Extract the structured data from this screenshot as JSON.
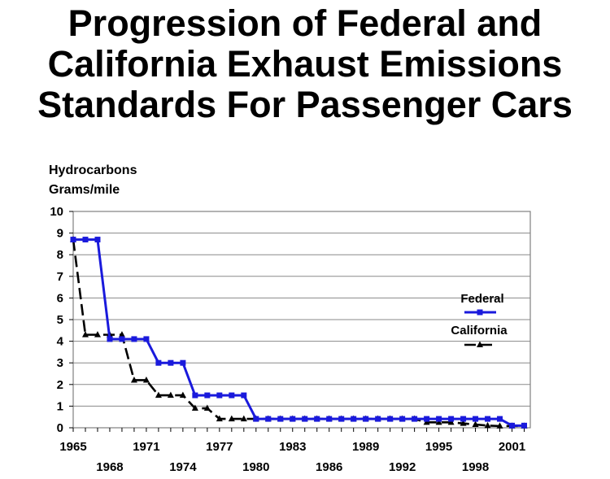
{
  "title": {
    "line1": "Progression of Federal and",
    "line2": "California Exhaust Emissions",
    "line3": "Standards For Passenger Cars"
  },
  "ylabel": {
    "line1": "Hydrocarbons",
    "line2": "Grams/mile"
  },
  "chart_data": {
    "type": "line",
    "title": "Progression of Federal and California Exhaust Emissions Standards For Passenger Cars",
    "xlabel": "",
    "ylabel": "Hydrocarbons Grams/mile",
    "xlim": [
      1965,
      2002.5
    ],
    "ylim": [
      0,
      10
    ],
    "y_ticks": [
      0,
      1,
      2,
      3,
      4,
      5,
      6,
      7,
      8,
      9,
      10
    ],
    "x_tick_labels_upper": [
      "1965",
      "1971",
      "1977",
      "1983",
      "1989",
      "1995",
      "2001"
    ],
    "x_tick_labels_lower": [
      "1968",
      "1974",
      "1980",
      "1986",
      "1992",
      "1998"
    ],
    "grid": "horizontal",
    "legend_position": "right",
    "x": [
      1965,
      1966,
      1967,
      1968,
      1969,
      1970,
      1971,
      1972,
      1973,
      1974,
      1975,
      1976,
      1977,
      1978,
      1979,
      1980,
      1981,
      1982,
      1983,
      1984,
      1985,
      1986,
      1987,
      1988,
      1989,
      1990,
      1991,
      1992,
      1993,
      1994,
      1995,
      1996,
      1997,
      1998,
      1999,
      2000,
      2001,
      2002
    ],
    "series": [
      {
        "name": "Federal",
        "color": "#1a1adc",
        "marker": "square",
        "dash": "solid",
        "values": [
          8.7,
          8.7,
          8.7,
          4.1,
          4.1,
          4.1,
          4.1,
          3.0,
          3.0,
          3.0,
          1.5,
          1.5,
          1.5,
          1.5,
          1.5,
          0.41,
          0.41,
          0.41,
          0.41,
          0.41,
          0.41,
          0.41,
          0.41,
          0.41,
          0.41,
          0.41,
          0.41,
          0.41,
          0.41,
          0.41,
          0.41,
          0.41,
          0.41,
          0.41,
          0.41,
          0.41,
          0.1,
          0.1
        ]
      },
      {
        "name": "California",
        "color": "#000000",
        "marker": "triangle",
        "dash": "dashed",
        "values": [
          8.7,
          4.3,
          4.3,
          4.3,
          4.3,
          2.2,
          2.2,
          1.5,
          1.5,
          1.5,
          0.9,
          0.9,
          0.41,
          0.41,
          0.41,
          0.41,
          0.41,
          0.41,
          0.41,
          0.41,
          0.41,
          0.41,
          0.41,
          0.41,
          0.41,
          0.41,
          0.41,
          0.41,
          0.41,
          0.25,
          0.25,
          0.25,
          0.2,
          0.15,
          0.1,
          0.08,
          0.08,
          0.08
        ]
      }
    ]
  }
}
